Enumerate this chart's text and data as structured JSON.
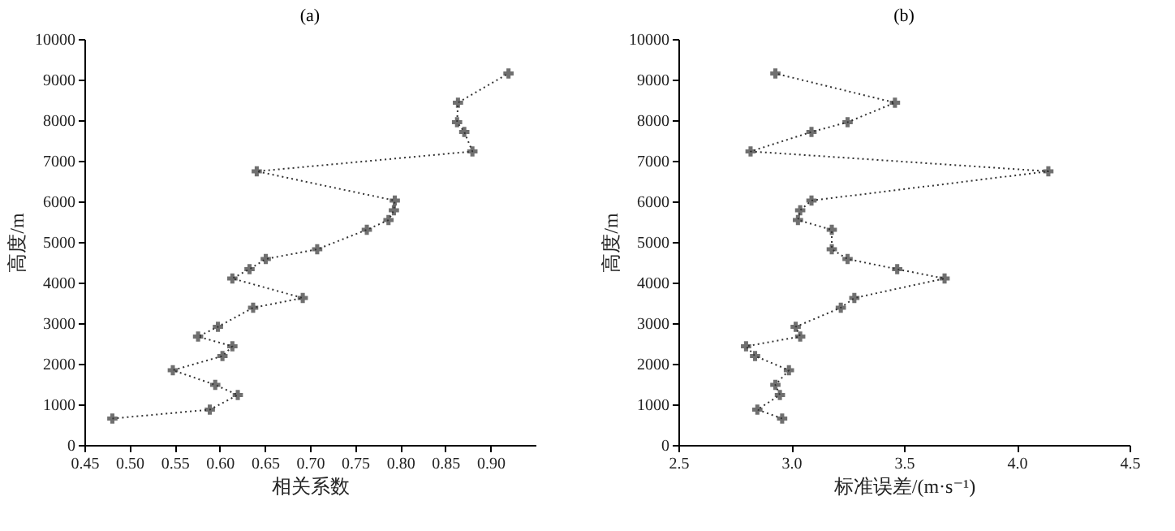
{
  "chart_data": [
    {
      "type": "line",
      "title": "(a)",
      "xlabel": "相关系数",
      "ylabel": "高度/m",
      "marker": "cross",
      "line_style": "dotted",
      "xlim": [
        0.45,
        0.95
      ],
      "xticks": [
        0.45,
        {
          "value": 0.5,
          "label": "0.50"
        },
        0.55,
        {
          "value": 0.6,
          "label": "0.60"
        },
        0.65,
        {
          "value": 0.7,
          "label": "0.70"
        },
        0.75,
        {
          "value": 0.8,
          "label": "0.80"
        },
        0.85,
        {
          "value": 0.9,
          "label": "0.90"
        }
      ],
      "ylim": [
        0,
        10000
      ],
      "yticks": [
        0,
        1000,
        2000,
        3000,
        4000,
        5000,
        6000,
        7000,
        8000,
        9000,
        10000
      ],
      "series": [
        {
          "color": "#333333",
          "x": [
            0.481,
            0.589,
            0.62,
            0.595,
            0.548,
            0.603,
            0.614,
            0.576,
            0.598,
            0.637,
            0.692,
            0.614,
            0.633,
            0.651,
            0.708,
            0.763,
            0.787,
            0.793,
            0.794,
            0.641,
            0.88,
            0.871,
            0.863,
            0.864,
            0.92
          ],
          "values": [
            650,
            870,
            1230,
            1480,
            1840,
            2190,
            2430,
            2670,
            2910,
            3380,
            3620,
            4100,
            4330,
            4580,
            4820,
            5300,
            5540,
            5780,
            6020,
            6740,
            7230,
            7710,
            7950,
            8430,
            9150
          ]
        }
      ]
    },
    {
      "type": "line",
      "title": "(b)",
      "xlabel": "标准误差/(m·s⁻¹)",
      "ylabel": "高度/m",
      "marker": "cross",
      "line_style": "dotted",
      "xlim": [
        2.5,
        4.5
      ],
      "xticks": [
        2.5,
        {
          "value": 3,
          "label": "3.0"
        },
        3.5,
        {
          "value": 4,
          "label": "4.0"
        },
        4.5
      ],
      "ylim": [
        0,
        10000
      ],
      "yticks": [
        0,
        1000,
        2000,
        3000,
        4000,
        5000,
        6000,
        7000,
        8000,
        9000,
        10000
      ],
      "series": [
        {
          "color": "#333333",
          "x": [
            2.96,
            2.85,
            2.95,
            2.93,
            2.99,
            2.84,
            2.8,
            3.04,
            3.02,
            3.22,
            3.28,
            3.68,
            3.47,
            3.25,
            3.18,
            3.18,
            3.03,
            3.04,
            3.09,
            4.14,
            2.82,
            3.09,
            3.25,
            3.46,
            2.93
          ],
          "values": [
            650,
            870,
            1230,
            1480,
            1840,
            2190,
            2430,
            2670,
            2910,
            3380,
            3620,
            4100,
            4330,
            4580,
            4820,
            5300,
            5540,
            5780,
            6020,
            6740,
            7230,
            7710,
            7950,
            8430,
            9150
          ]
        }
      ]
    }
  ]
}
